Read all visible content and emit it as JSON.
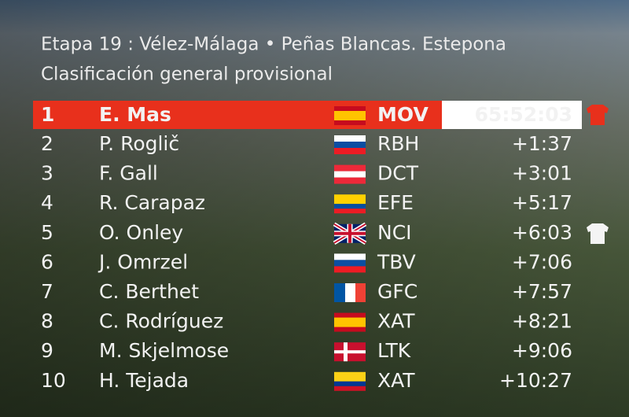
{
  "header": {
    "title": "Etapa 19 : Vélez-Málaga • Peñas Blancas. Estepona",
    "subtitle": "Clasificación general provisional"
  },
  "table": {
    "rows": [
      [
        "1",
        "E. Mas",
        "MOV",
        "65:52:03"
      ],
      [
        "2",
        "P. Roglič",
        "RBH",
        "+1:37"
      ],
      [
        "3",
        "F. Gall",
        "DCT",
        "+3:01"
      ],
      [
        "4",
        "R. Carapaz",
        "EFE",
        "+5:17"
      ],
      [
        "5",
        "O. Onley",
        "NCI",
        "+6:03"
      ],
      [
        "6",
        "J. Omrzel",
        "TBV",
        "+7:06"
      ],
      [
        "7",
        "C. Berthet",
        "GFC",
        "+7:57"
      ],
      [
        "8",
        "C. Rodríguez",
        "XAT",
        "+8:21"
      ],
      [
        "9",
        "M. Skjelmose",
        "LTK",
        "+9:06"
      ],
      [
        "10",
        "H. Tejada",
        "XAT",
        "+10:27"
      ]
    ]
  }
}
